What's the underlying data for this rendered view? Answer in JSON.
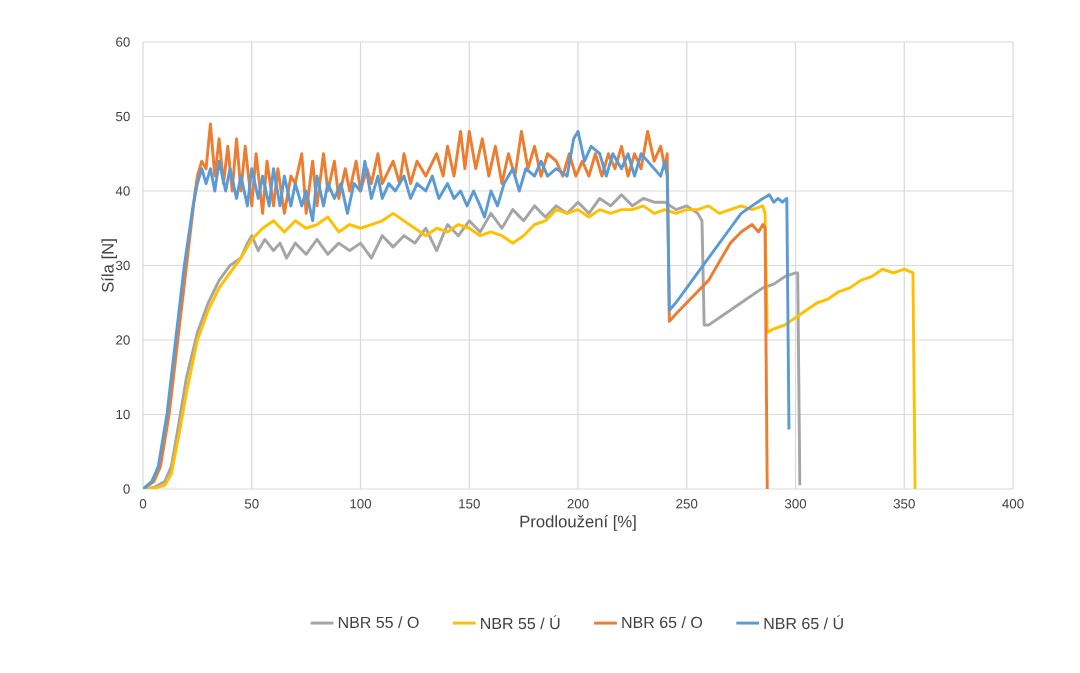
{
  "chart_data": {
    "type": "line",
    "xlabel": "Prodloužení [%]",
    "ylabel": "Síla [N]",
    "xlim": [
      0,
      400
    ],
    "ylim": [
      0,
      60
    ],
    "xticks": [
      0,
      50,
      100,
      150,
      200,
      250,
      300,
      350,
      400
    ],
    "yticks": [
      0,
      10,
      20,
      30,
      40,
      50,
      60
    ],
    "grid": true,
    "legend": "bottom",
    "marker": "none",
    "series": [
      {
        "name": "NBR 55 / O",
        "color": "#a5a5a5",
        "x": [
          0,
          5,
          10,
          13,
          16,
          20,
          25,
          30,
          35,
          40,
          45,
          48,
          50,
          53,
          56,
          60,
          63,
          66,
          70,
          75,
          80,
          85,
          90,
          95,
          100,
          105,
          110,
          115,
          120,
          125,
          130,
          135,
          140,
          145,
          150,
          155,
          160,
          165,
          170,
          175,
          180,
          185,
          190,
          195,
          200,
          205,
          210,
          215,
          220,
          225,
          230,
          235,
          240,
          245,
          250,
          255,
          257,
          258,
          260,
          265,
          270,
          275,
          280,
          285,
          290,
          295,
          300,
          301,
          302
        ],
        "values": [
          0,
          0.2,
          1,
          3,
          8,
          15,
          21,
          25,
          28,
          30,
          31,
          33,
          34,
          32,
          33.5,
          32,
          33,
          31,
          33,
          31.5,
          33.5,
          31.5,
          33,
          32,
          33,
          31,
          34,
          32.5,
          34,
          33,
          35,
          32,
          35.5,
          34,
          36,
          34.5,
          37,
          35,
          37.5,
          36,
          38,
          36.5,
          38,
          37,
          38.5,
          37,
          39,
          38,
          39.5,
          38,
          39,
          38.5,
          38.5,
          37.5,
          38,
          37,
          36,
          22,
          22,
          23,
          24,
          25,
          26,
          27,
          27.5,
          28.5,
          29,
          29,
          0.5
        ]
      },
      {
        "name": "NBR 55 / Ú",
        "color": "#ffc000",
        "x": [
          0,
          5,
          10,
          13,
          17,
          20,
          25,
          30,
          35,
          40,
          45,
          50,
          55,
          60,
          65,
          70,
          75,
          80,
          85,
          90,
          95,
          100,
          105,
          110,
          115,
          120,
          125,
          130,
          135,
          140,
          145,
          150,
          155,
          160,
          165,
          170,
          175,
          180,
          185,
          190,
          195,
          200,
          205,
          210,
          215,
          220,
          225,
          230,
          235,
          240,
          245,
          250,
          255,
          260,
          265,
          270,
          275,
          280,
          285,
          286,
          287,
          290,
          295,
          300,
          305,
          310,
          315,
          320,
          325,
          330,
          335,
          340,
          345,
          350,
          354,
          355
        ],
        "values": [
          0,
          0.1,
          0.5,
          2,
          8,
          13,
          20,
          24,
          27,
          29,
          31,
          33.5,
          35,
          36,
          34.5,
          36,
          35,
          35.5,
          36.5,
          34.5,
          35.5,
          35,
          35.5,
          36,
          37,
          36,
          35,
          34,
          35,
          34.5,
          35.5,
          35,
          34,
          34.5,
          34,
          33,
          34,
          35.5,
          36,
          37.5,
          37,
          37.5,
          36.5,
          37.5,
          37,
          37.5,
          37.5,
          38,
          37,
          37.5,
          37,
          37.5,
          37.5,
          38,
          37,
          37.5,
          38,
          37.5,
          38,
          37,
          21,
          21.5,
          22,
          23,
          24,
          25,
          25.5,
          26.5,
          27,
          28,
          28.5,
          29.5,
          29,
          29.5,
          29,
          0
        ]
      },
      {
        "name": "NBR 65 / O",
        "color": "#ed7d31",
        "x": [
          0,
          5,
          8,
          12,
          16,
          20,
          24,
          25,
          27,
          29,
          31,
          33,
          35,
          37,
          39,
          41,
          43,
          45,
          47,
          50,
          52,
          55,
          57,
          60,
          62,
          65,
          68,
          70,
          73,
          75,
          78,
          80,
          83,
          85,
          88,
          90,
          93,
          95,
          98,
          100,
          103,
          105,
          108,
          110,
          115,
          118,
          120,
          123,
          126,
          130,
          135,
          138,
          140,
          143,
          146,
          148,
          150,
          153,
          156,
          159,
          162,
          165,
          168,
          171,
          174,
          177,
          180,
          183,
          186,
          190,
          193,
          196,
          199,
          202,
          205,
          208,
          211,
          214,
          217,
          220,
          223,
          226,
          229,
          232,
          235,
          238,
          240,
          241,
          242,
          245,
          250,
          255,
          260,
          265,
          270,
          275,
          280,
          283,
          285,
          286,
          287
        ],
        "values": [
          0,
          1,
          3,
          10,
          20,
          30,
          40,
          42,
          44,
          43,
          49,
          42,
          47,
          41,
          46,
          40,
          47,
          40,
          46,
          38,
          45,
          37,
          44,
          38,
          43,
          37,
          42,
          41,
          45,
          37,
          44,
          38,
          45,
          40,
          44,
          39,
          43,
          40,
          44,
          40,
          43,
          41,
          45,
          41,
          44,
          41,
          45,
          41,
          44,
          42,
          45,
          42,
          46,
          42,
          48,
          43,
          48,
          43,
          47,
          42,
          46,
          41,
          45,
          42,
          48,
          43,
          46,
          42,
          45,
          44,
          42,
          45,
          42,
          44,
          42,
          45,
          42,
          45,
          43,
          46,
          42,
          45,
          43,
          48,
          44,
          46,
          43,
          45,
          22.5,
          23.5,
          25,
          26.5,
          28,
          30.5,
          33,
          34.5,
          35.5,
          34.5,
          35.5,
          35,
          0
        ]
      },
      {
        "name": "NBR 65 / Ú",
        "color": "#5b9bd5",
        "x": [
          0,
          4,
          7,
          11,
          15,
          19,
          23,
          25,
          27,
          29,
          31,
          33,
          35,
          38,
          40,
          43,
          45,
          48,
          50,
          53,
          55,
          58,
          60,
          63,
          65,
          68,
          70,
          73,
          75,
          78,
          80,
          83,
          85,
          88,
          91,
          94,
          97,
          100,
          102,
          105,
          108,
          110,
          113,
          116,
          120,
          123,
          126,
          130,
          133,
          136,
          140,
          143,
          146,
          149,
          152,
          155,
          157,
          160,
          163,
          166,
          170,
          173,
          176,
          180,
          183,
          186,
          190,
          195,
          198,
          200,
          203,
          206,
          210,
          213,
          216,
          220,
          223,
          226,
          229,
          232,
          235,
          238,
          240,
          241,
          242,
          245,
          250,
          255,
          260,
          265,
          270,
          275,
          280,
          285,
          288,
          290,
          292,
          294,
          296,
          297
        ],
        "values": [
          0,
          1,
          3,
          10,
          20,
          30,
          38,
          41,
          43,
          41,
          43,
          40,
          44,
          40,
          43,
          39,
          42,
          38,
          43,
          39,
          42,
          38,
          43,
          38,
          42,
          38,
          41,
          38,
          40,
          36,
          42,
          38,
          41,
          39,
          41,
          37,
          41,
          40,
          44,
          39,
          42,
          39,
          41,
          40,
          42,
          39,
          41,
          40,
          42,
          39,
          41,
          39,
          40,
          38,
          40,
          38,
          36.5,
          40,
          38,
          41,
          43,
          40,
          43,
          42,
          44,
          42,
          43,
          42,
          47,
          48,
          44,
          46,
          45,
          42,
          45,
          43,
          45,
          42,
          45,
          44,
          43,
          42,
          44,
          42,
          24,
          25,
          27,
          29,
          31,
          33,
          35,
          37,
          38,
          39,
          39.5,
          38.5,
          39,
          38.5,
          39,
          8
        ]
      }
    ]
  }
}
